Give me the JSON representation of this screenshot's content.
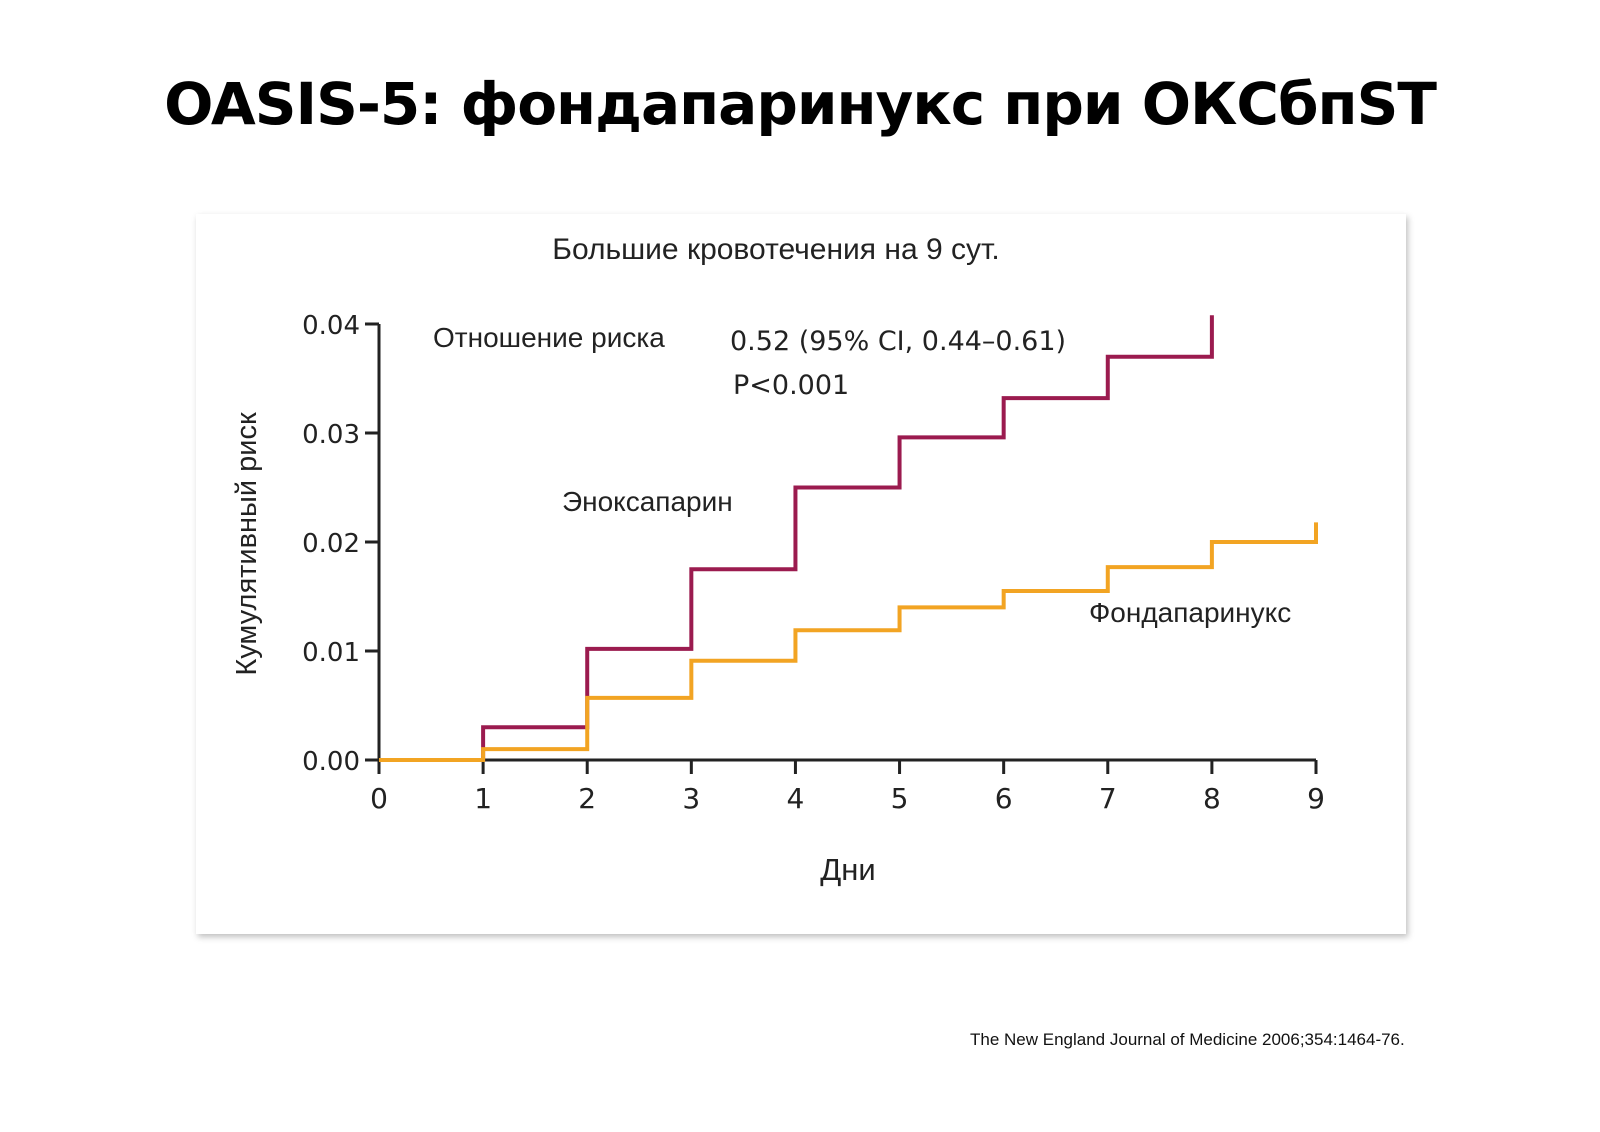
{
  "slide": {
    "title": "OASIS-5: фондапаринукс при ОКСбпST",
    "citation": "The New England Journal of Medicine 2006;354:1464-76."
  },
  "colors": {
    "enoxaparin": "#9b1b4f",
    "fondaparinux": "#f2a423",
    "axis": "#222222"
  },
  "chart_data": {
    "type": "line",
    "step": true,
    "title": "Большие кровотечения на 9 сут.",
    "xlabel": "Дни",
    "ylabel": "Кумулятивный риск",
    "xlim": [
      0,
      9
    ],
    "ylim": [
      0,
      0.04
    ],
    "xticks": [
      "0",
      "1",
      "2",
      "3",
      "4",
      "5",
      "6",
      "7",
      "8",
      "9"
    ],
    "yticks": [
      "0.00",
      "0.01",
      "0.02",
      "0.03",
      "0.04"
    ],
    "grid": false,
    "legend": "none",
    "series": [
      {
        "name": "Эноксапарин",
        "color": "#9b1b4f",
        "x": [
          0,
          1,
          2,
          3,
          4,
          5,
          6,
          7,
          8,
          8
        ],
        "y": [
          0,
          0.003,
          0.0102,
          0.0175,
          0.025,
          0.0296,
          0.0332,
          0.037,
          0.037,
          0.0408
        ]
      },
      {
        "name": "Фондапаринукс",
        "color": "#f2a423",
        "x": [
          0,
          1,
          2,
          3,
          4,
          5,
          6,
          7,
          8,
          9,
          9
        ],
        "y": [
          0,
          0.001,
          0.0057,
          0.0091,
          0.0119,
          0.014,
          0.0155,
          0.0177,
          0.02,
          0.02,
          0.0218
        ]
      }
    ],
    "annotations": {
      "hr_label": "Отношение риска",
      "hr_value": "0.52 (95% CI, 0.44–0.61)",
      "p_value": "P<0.001"
    }
  }
}
